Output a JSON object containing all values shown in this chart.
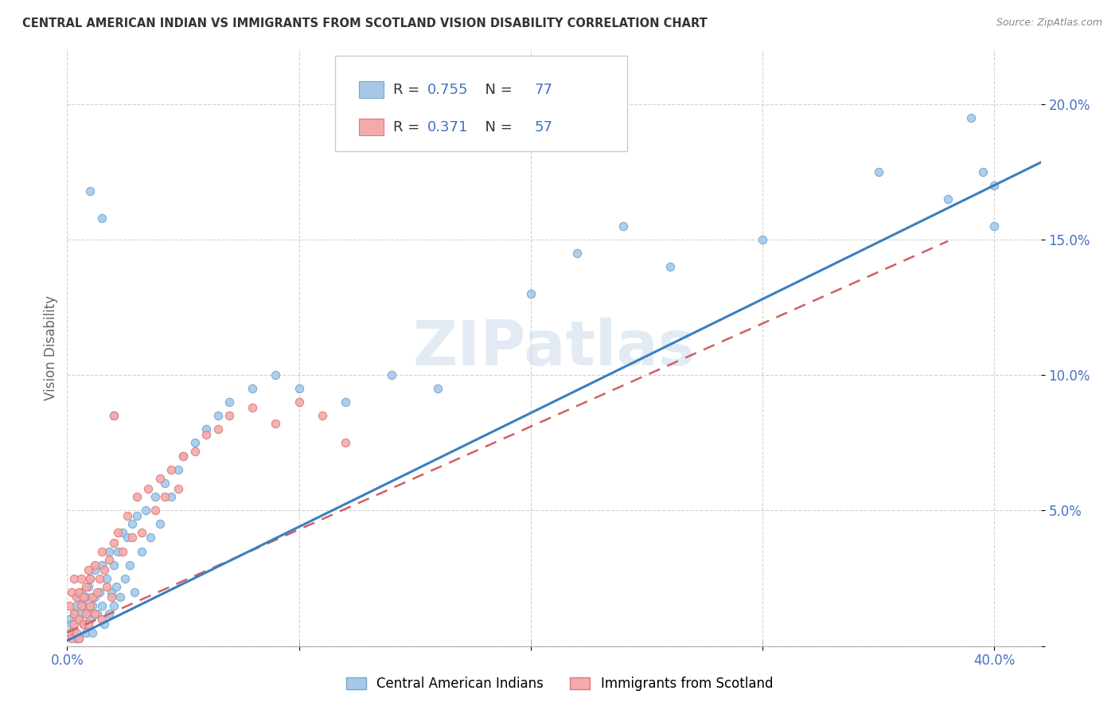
{
  "title": "CENTRAL AMERICAN INDIAN VS IMMIGRANTS FROM SCOTLAND VISION DISABILITY CORRELATION CHART",
  "source": "Source: ZipAtlas.com",
  "ylabel": "Vision Disability",
  "xlim": [
    0.0,
    0.42
  ],
  "ylim": [
    0.0,
    0.22
  ],
  "x_ticks": [
    0.0,
    0.1,
    0.2,
    0.3,
    0.4
  ],
  "x_tick_labels": [
    "0.0%",
    "",
    "",
    "",
    "40.0%"
  ],
  "y_ticks": [
    0.0,
    0.05,
    0.1,
    0.15,
    0.2
  ],
  "y_tick_labels": [
    "",
    "5.0%",
    "10.0%",
    "15.0%",
    "20.0%"
  ],
  "legend1_label": "Central American Indians",
  "legend2_label": "Immigrants from Scotland",
  "R1": 0.755,
  "N1": 77,
  "R2": 0.371,
  "N2": 57,
  "color1": "#a8c8e8",
  "color2": "#f4aaaa",
  "edge1": "#6aaad4",
  "edge2": "#e07878",
  "line1_color": "#3a7fc1",
  "line2_color": "#d06060",
  "watermark": "ZIPatlas",
  "background_color": "#ffffff",
  "grid_color": "#cccccc",
  "blue_scatter_x": [
    0.001,
    0.002,
    0.003,
    0.003,
    0.004,
    0.004,
    0.005,
    0.005,
    0.005,
    0.006,
    0.006,
    0.007,
    0.007,
    0.008,
    0.008,
    0.009,
    0.009,
    0.01,
    0.01,
    0.011,
    0.011,
    0.012,
    0.012,
    0.013,
    0.014,
    0.015,
    0.015,
    0.016,
    0.017,
    0.018,
    0.018,
    0.019,
    0.02,
    0.02,
    0.021,
    0.022,
    0.023,
    0.024,
    0.025,
    0.026,
    0.027,
    0.028,
    0.029,
    0.03,
    0.032,
    0.034,
    0.036,
    0.038,
    0.04,
    0.042,
    0.045,
    0.048,
    0.05,
    0.055,
    0.06,
    0.065,
    0.07,
    0.08,
    0.09,
    0.1,
    0.12,
    0.14,
    0.16,
    0.2,
    0.22,
    0.24,
    0.26,
    0.3,
    0.35,
    0.38,
    0.39,
    0.395,
    0.4,
    0.4,
    0.01,
    0.015,
    0.02
  ],
  "blue_scatter_y": [
    0.01,
    0.008,
    0.012,
    0.005,
    0.015,
    0.003,
    0.01,
    0.018,
    0.003,
    0.012,
    0.02,
    0.008,
    0.015,
    0.018,
    0.005,
    0.012,
    0.022,
    0.01,
    0.025,
    0.015,
    0.005,
    0.018,
    0.028,
    0.012,
    0.02,
    0.015,
    0.03,
    0.008,
    0.025,
    0.012,
    0.035,
    0.02,
    0.015,
    0.03,
    0.022,
    0.035,
    0.018,
    0.042,
    0.025,
    0.04,
    0.03,
    0.045,
    0.02,
    0.048,
    0.035,
    0.05,
    0.04,
    0.055,
    0.045,
    0.06,
    0.055,
    0.065,
    0.07,
    0.075,
    0.08,
    0.085,
    0.09,
    0.095,
    0.1,
    0.095,
    0.09,
    0.1,
    0.095,
    0.13,
    0.145,
    0.155,
    0.14,
    0.15,
    0.175,
    0.165,
    0.195,
    0.175,
    0.17,
    0.155,
    0.168,
    0.158,
    0.085
  ],
  "pink_scatter_x": [
    0.001,
    0.001,
    0.002,
    0.002,
    0.003,
    0.003,
    0.003,
    0.004,
    0.004,
    0.005,
    0.005,
    0.005,
    0.006,
    0.006,
    0.007,
    0.007,
    0.008,
    0.008,
    0.009,
    0.009,
    0.01,
    0.01,
    0.011,
    0.012,
    0.012,
    0.013,
    0.014,
    0.015,
    0.015,
    0.016,
    0.017,
    0.018,
    0.019,
    0.02,
    0.022,
    0.024,
    0.026,
    0.028,
    0.03,
    0.032,
    0.035,
    0.038,
    0.04,
    0.042,
    0.045,
    0.048,
    0.05,
    0.055,
    0.06,
    0.065,
    0.07,
    0.08,
    0.09,
    0.1,
    0.11,
    0.12,
    0.02
  ],
  "pink_scatter_y": [
    0.005,
    0.015,
    0.003,
    0.02,
    0.008,
    0.012,
    0.025,
    0.005,
    0.018,
    0.01,
    0.02,
    0.003,
    0.015,
    0.025,
    0.008,
    0.018,
    0.012,
    0.022,
    0.008,
    0.028,
    0.015,
    0.025,
    0.018,
    0.012,
    0.03,
    0.02,
    0.025,
    0.035,
    0.01,
    0.028,
    0.022,
    0.032,
    0.018,
    0.038,
    0.042,
    0.035,
    0.048,
    0.04,
    0.055,
    0.042,
    0.058,
    0.05,
    0.062,
    0.055,
    0.065,
    0.058,
    0.07,
    0.072,
    0.078,
    0.08,
    0.085,
    0.088,
    0.082,
    0.09,
    0.085,
    0.075,
    0.085
  ]
}
